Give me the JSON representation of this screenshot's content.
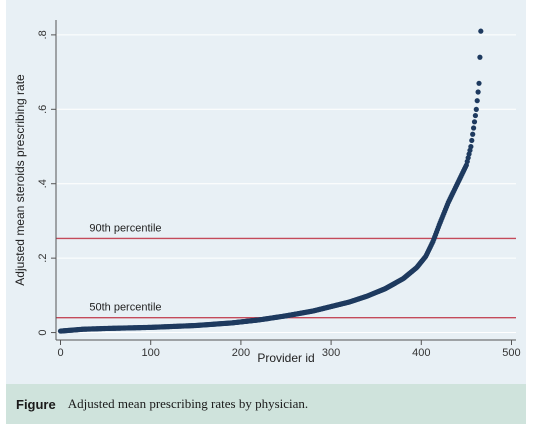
{
  "caption": {
    "label": "Figure",
    "text": "Adjusted mean prescribing rates by physician."
  },
  "colors": {
    "marker": "#1e3a5f",
    "reference_line": "#c44a5a",
    "grid": "#ffffff",
    "plot_background": "#e8f0f5",
    "caption_background": "#cfe3dc"
  },
  "chart_data": {
    "type": "scatter",
    "title": "",
    "xlabel": "Provider id",
    "ylabel": "Adjusted mean steroids prescribing rate",
    "xlim": [
      -5,
      505
    ],
    "ylim": [
      -0.02,
      0.84
    ],
    "xticks": [
      0,
      100,
      200,
      300,
      400,
      500
    ],
    "xtick_labels": [
      "0",
      "100",
      "200",
      "300",
      "400",
      "500"
    ],
    "yticks": [
      0,
      0.2,
      0.4,
      0.6,
      0.8
    ],
    "ytick_labels": [
      "0",
      ".2",
      ".4",
      ".6",
      ".8"
    ],
    "grid": true,
    "n_points": 466,
    "curve_knots": [
      [
        0,
        0.004
      ],
      [
        10,
        0.006
      ],
      [
        25,
        0.009
      ],
      [
        50,
        0.011
      ],
      [
        100,
        0.014
      ],
      [
        150,
        0.019
      ],
      [
        190,
        0.026
      ],
      [
        220,
        0.034
      ],
      [
        250,
        0.045
      ],
      [
        280,
        0.058
      ],
      [
        300,
        0.07
      ],
      [
        320,
        0.082
      ],
      [
        340,
        0.098
      ],
      [
        360,
        0.118
      ],
      [
        380,
        0.145
      ],
      [
        395,
        0.175
      ],
      [
        405,
        0.205
      ],
      [
        413,
        0.245
      ],
      [
        420,
        0.29
      ],
      [
        430,
        0.35
      ],
      [
        440,
        0.4
      ],
      [
        450,
        0.45
      ],
      [
        455,
        0.5
      ],
      [
        458,
        0.55
      ],
      [
        461,
        0.6
      ],
      [
        464,
        0.67
      ],
      [
        466,
        0.81
      ]
    ],
    "reference_lines": [
      {
        "label": "90th percentile",
        "y": 0.253
      },
      {
        "label": "50th percentile",
        "y": 0.04
      }
    ]
  }
}
